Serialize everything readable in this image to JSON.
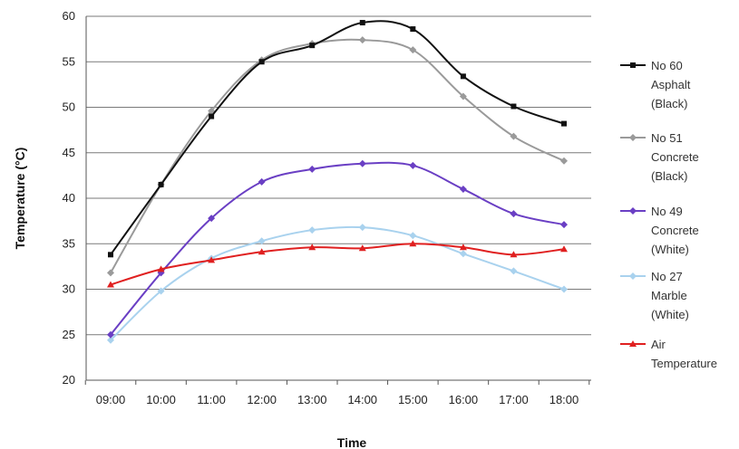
{
  "chart_data": {
    "type": "line",
    "xlabel": "Time",
    "ylabel": "Temperature (°C)",
    "ylim": [
      20,
      60
    ],
    "yticks": [
      20,
      25,
      30,
      35,
      40,
      45,
      50,
      55,
      60
    ],
    "grid": "horizontal",
    "legend_position": "right",
    "categories": [
      "09:00",
      "10:00",
      "11:00",
      "12:00",
      "13:00",
      "14:00",
      "15:00",
      "16:00",
      "17:00",
      "18:00"
    ],
    "series": [
      {
        "name_lines": [
          "No 60",
          "Asphalt",
          "(Black)"
        ],
        "color": "#111111",
        "marker": "square",
        "values": [
          33.8,
          41.5,
          49.0,
          55.0,
          56.8,
          59.3,
          58.6,
          53.4,
          50.1,
          48.2
        ]
      },
      {
        "name_lines": [
          "No 51",
          "Concrete",
          "(Black)"
        ],
        "color": "#9a9a9a",
        "marker": "diamond",
        "values": [
          31.8,
          41.5,
          49.6,
          55.2,
          57.0,
          57.4,
          56.3,
          51.2,
          46.8,
          44.1
        ]
      },
      {
        "name_lines": [
          "No 49",
          "Concrete",
          "(White)"
        ],
        "color": "#6a3fc4",
        "marker": "diamond",
        "values": [
          25.0,
          31.8,
          37.8,
          41.8,
          43.2,
          43.8,
          43.6,
          41.0,
          38.3,
          37.1
        ]
      },
      {
        "name_lines": [
          "No 27",
          "Marble",
          "(White)"
        ],
        "color": "#a9d2ee",
        "marker": "diamond",
        "values": [
          24.4,
          29.8,
          33.4,
          35.3,
          36.5,
          36.8,
          35.9,
          33.9,
          32.0,
          30.0
        ]
      },
      {
        "name_lines": [
          "Air",
          "Temperature"
        ],
        "color": "#e02020",
        "marker": "triangle",
        "values": [
          30.5,
          32.2,
          33.2,
          34.1,
          34.6,
          34.5,
          35.0,
          34.6,
          33.8,
          34.4
        ]
      }
    ]
  }
}
